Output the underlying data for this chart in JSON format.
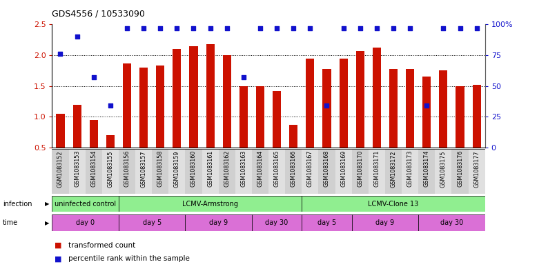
{
  "title": "GDS4556 / 10533090",
  "samples": [
    "GSM1083152",
    "GSM1083153",
    "GSM1083154",
    "GSM1083155",
    "GSM1083156",
    "GSM1083157",
    "GSM1083158",
    "GSM1083159",
    "GSM1083160",
    "GSM1083161",
    "GSM1083162",
    "GSM1083163",
    "GSM1083164",
    "GSM1083165",
    "GSM1083166",
    "GSM1083167",
    "GSM1083168",
    "GSM1083169",
    "GSM1083170",
    "GSM1083171",
    "GSM1083172",
    "GSM1083173",
    "GSM1083174",
    "GSM1083175",
    "GSM1083176",
    "GSM1083177"
  ],
  "bar_values": [
    1.05,
    1.2,
    0.95,
    0.7,
    1.87,
    1.8,
    1.83,
    2.1,
    2.15,
    2.18,
    2.0,
    1.5,
    1.5,
    1.42,
    0.87,
    1.95,
    1.78,
    1.95,
    2.07,
    2.12,
    1.78,
    1.78,
    1.65,
    1.76,
    1.5,
    1.52
  ],
  "percentile_values": [
    76,
    90,
    57,
    34,
    97,
    97,
    97,
    97,
    97,
    97,
    97,
    57,
    97,
    97,
    97,
    97,
    34,
    97,
    97,
    97,
    97,
    97,
    34,
    97,
    97,
    97
  ],
  "bar_color": "#cc1100",
  "dot_color": "#1111cc",
  "ylim_left": [
    0.5,
    2.5
  ],
  "ylim_right": [
    0,
    100
  ],
  "yticks_left": [
    0.5,
    1.0,
    1.5,
    2.0,
    2.5
  ],
  "yticks_right": [
    0,
    25,
    50,
    75,
    100
  ],
  "ytick_labels_right": [
    "0",
    "25",
    "50",
    "75",
    "100%"
  ],
  "infection_groups": [
    {
      "label": "uninfected control",
      "start": 0,
      "end": 3
    },
    {
      "label": "LCMV-Armstrong",
      "start": 4,
      "end": 14
    },
    {
      "label": "LCMV-Clone 13",
      "start": 15,
      "end": 25
    }
  ],
  "infection_color": "#90ee90",
  "time_groups": [
    {
      "label": "day 0",
      "start": 0,
      "end": 3
    },
    {
      "label": "day 5",
      "start": 4,
      "end": 7
    },
    {
      "label": "day 9",
      "start": 8,
      "end": 11
    },
    {
      "label": "day 30",
      "start": 12,
      "end": 14
    },
    {
      "label": "day 5",
      "start": 15,
      "end": 17
    },
    {
      "label": "day 9",
      "start": 18,
      "end": 21
    },
    {
      "label": "day 30",
      "start": 22,
      "end": 25
    }
  ],
  "time_color": "#da70d6",
  "legend_items": [
    {
      "label": "transformed count",
      "color": "#cc1100"
    },
    {
      "label": "percentile rank within the sample",
      "color": "#1111cc"
    }
  ]
}
